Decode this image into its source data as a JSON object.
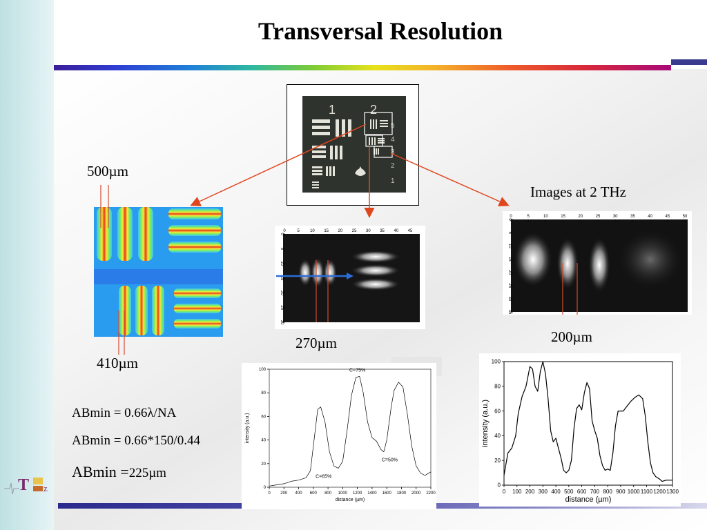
{
  "slide": {
    "title": "Transversal Resolution",
    "images_label": "Images at 2 THz",
    "logo_text": {
      "big": "T",
      "small": "z"
    }
  },
  "labels": {
    "top_left_width": "500µm",
    "bottom_left_width": "410µm",
    "middle_width": "270µm",
    "right_width": "200µm"
  },
  "formulas": {
    "line1": "ABmin = 0.66λ/NA",
    "line2": "ABmin = 0.66*150/0.44",
    "line3_prefix": "ABmin =",
    "line3_value": "225µm"
  },
  "target": {
    "group_labels": [
      "1",
      "2"
    ],
    "element_labels": [
      "5",
      "4",
      "3",
      "2",
      "1"
    ]
  },
  "middle_image_axes": {
    "x_ticks": [
      "0",
      "5",
      "10",
      "15",
      "20",
      "25",
      "30",
      "35",
      "40",
      "45"
    ],
    "y_ticks": [
      "0",
      "5",
      "10",
      "15",
      "20",
      "25",
      "30"
    ]
  },
  "right_image_axes": {
    "x_ticks": [
      "0",
      "5",
      "10",
      "15",
      "20",
      "25",
      "30",
      "35",
      "40",
      "45",
      "50"
    ],
    "y_ticks": [
      "0",
      "5",
      "10",
      "15",
      "20",
      "25",
      "30",
      "35"
    ]
  },
  "colors": {
    "arrow": "#e0461e",
    "marker_line": "#d64a2e",
    "blue_arrow": "#2a6ed8"
  },
  "chart_data": [
    {
      "type": "line",
      "xlabel": "distance (µm)",
      "ylabel": "intensity (a.u.)",
      "xlim": [
        0,
        2200
      ],
      "ylim": [
        0,
        100
      ],
      "x_ticks": [
        0,
        200,
        400,
        600,
        800,
        1000,
        1200,
        1400,
        1600,
        1800,
        2000,
        2200
      ],
      "y_ticks": [
        0,
        20,
        40,
        60,
        80,
        100
      ],
      "annotations": [
        "C=75%",
        "C=50%",
        "C=65%"
      ],
      "series": [
        {
          "x": [
            0,
            100,
            200,
            300,
            400,
            500,
            560,
            620,
            660,
            700,
            760,
            820,
            880,
            940,
            1000,
            1060,
            1120,
            1180,
            1230,
            1280,
            1340,
            1400,
            1460,
            1520,
            1560,
            1600,
            1660,
            1700,
            1760,
            1820,
            1880,
            1940,
            2000,
            2060,
            2120,
            2200
          ],
          "y": [
            1,
            2,
            3,
            5,
            6,
            8,
            14,
            45,
            66,
            68,
            55,
            30,
            18,
            16,
            22,
            48,
            78,
            93,
            94,
            80,
            55,
            42,
            39,
            32,
            30,
            40,
            68,
            82,
            89,
            85,
            62,
            35,
            18,
            12,
            10,
            13
          ]
        }
      ]
    },
    {
      "type": "line",
      "xlabel": "distance (µm)",
      "ylabel": "intensity (a.u.)",
      "xlim": [
        0,
        1300
      ],
      "ylim": [
        0,
        100
      ],
      "x_ticks": [
        0,
        100,
        200,
        300,
        400,
        500,
        600,
        700,
        800,
        900,
        1000,
        1100,
        1200,
        1300
      ],
      "y_ticks": [
        0,
        20,
        40,
        60,
        80,
        100
      ],
      "series": [
        {
          "x": [
            0,
            30,
            60,
            90,
            110,
            140,
            170,
            200,
            220,
            240,
            260,
            280,
            300,
            320,
            340,
            360,
            380,
            400,
            420,
            440,
            460,
            480,
            500,
            520,
            540,
            560,
            580,
            600,
            620,
            640,
            660,
            680,
            700,
            720,
            740,
            760,
            780,
            800,
            820,
            840,
            860,
            880,
            900,
            920,
            950,
            980,
            1010,
            1040,
            1070,
            1090,
            1110,
            1130,
            1150,
            1170,
            1200,
            1220,
            1250,
            1280,
            1300
          ],
          "y": [
            8,
            26,
            30,
            40,
            58,
            72,
            80,
            96,
            94,
            80,
            76,
            92,
            100,
            90,
            70,
            44,
            35,
            38,
            30,
            22,
            12,
            10,
            12,
            20,
            46,
            62,
            65,
            61,
            75,
            83,
            78,
            52,
            44,
            38,
            24,
            16,
            12,
            13,
            12,
            26,
            48,
            60,
            60,
            60,
            64,
            68,
            71,
            73,
            70,
            56,
            35,
            18,
            10,
            7,
            5,
            3,
            4,
            4,
            4
          ]
        }
      ]
    }
  ]
}
